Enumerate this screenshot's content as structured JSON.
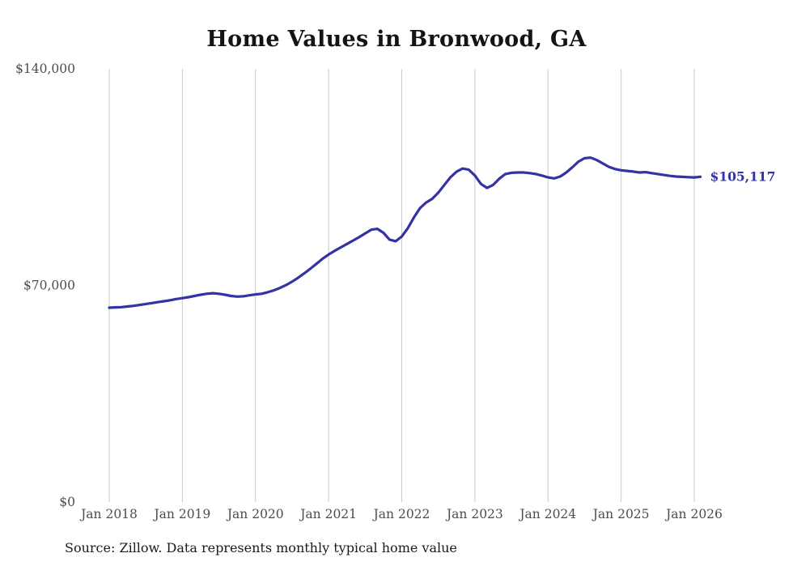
{
  "title": "Home Values in Bronwood, GA",
  "source_note": "Source: Zillow. Data represents monthly typical home value",
  "colors": {
    "line": "#3333a3",
    "end_label": "#3333a3",
    "grid": "#c9c9c9",
    "tick_text": "#4d4d4d",
    "title_text": "#141414"
  },
  "chart_data": {
    "type": "line",
    "title": "Home Values in Bronwood, GA",
    "x_start": "Jan 2018",
    "x_interval": "month",
    "x_tick_labels": [
      "Jan 2018",
      "Jan 2019",
      "Jan 2020",
      "Jan 2021",
      "Jan 2022",
      "Jan 2023",
      "Jan 2024",
      "Jan 2025",
      "Jan 2026"
    ],
    "months_per_tick": 12,
    "y_ticks": [
      {
        "label": "$0",
        "value": 0
      },
      {
        "label": "$70,000",
        "value": 70000
      },
      {
        "label": "$140,000",
        "value": 140000
      }
    ],
    "ylim": [
      0,
      140000
    ],
    "grid": "vertical",
    "legend": "none",
    "final_value": 105117,
    "final_value_label": "$105,117",
    "series": [
      {
        "name": "Typical home value",
        "values": [
          62800,
          62900,
          63000,
          63200,
          63400,
          63700,
          64000,
          64300,
          64600,
          64900,
          65200,
          65600,
          65900,
          66200,
          66600,
          67000,
          67300,
          67500,
          67300,
          67000,
          66600,
          66400,
          66500,
          66800,
          67100,
          67300,
          67800,
          68400,
          69200,
          70100,
          71200,
          72500,
          73900,
          75400,
          77000,
          78600,
          80000,
          81200,
          82300,
          83400,
          84500,
          85600,
          86800,
          88000,
          88300,
          87000,
          84800,
          84300,
          85800,
          88500,
          92000,
          95000,
          96800,
          98000,
          100000,
          102500,
          105000,
          106800,
          107800,
          107400,
          105500,
          102800,
          101500,
          102500,
          104500,
          106000,
          106400,
          106500,
          106500,
          106300,
          106000,
          105500,
          104900,
          104600,
          105200,
          106500,
          108200,
          110000,
          111100,
          111300,
          110500,
          109400,
          108300,
          107600,
          107200,
          107000,
          106800,
          106500,
          106600,
          106300,
          106000,
          105700,
          105400,
          105200,
          105100,
          105000,
          104900,
          105117
        ]
      }
    ]
  }
}
